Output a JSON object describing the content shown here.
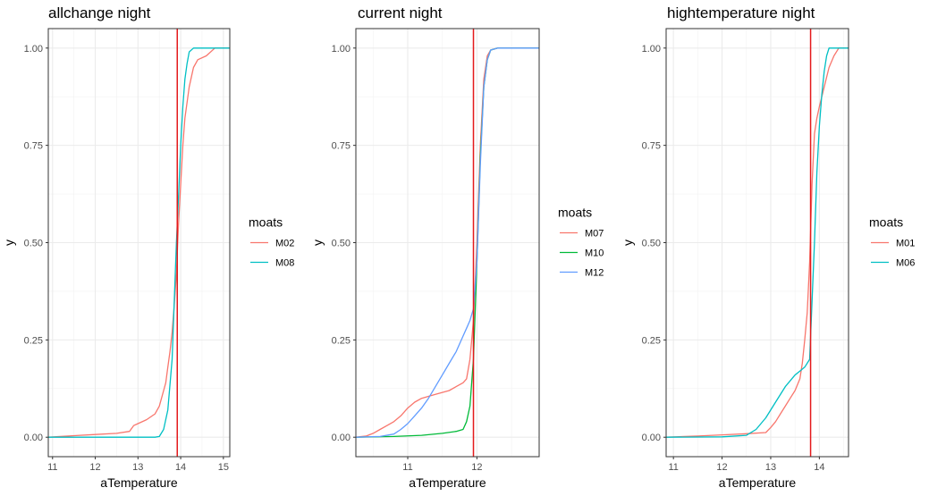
{
  "chart_data": [
    {
      "type": "line",
      "title": "allchange night",
      "xlabel": "aTemperature",
      "ylabel": "y",
      "xlim": [
        10.9,
        15.15
      ],
      "ylim": [
        -0.05,
        1.05
      ],
      "xticks": [
        11,
        12,
        13,
        14,
        15
      ],
      "xtick_labels": [
        "11",
        "12",
        "13",
        "14",
        "15"
      ],
      "yticks": [
        0,
        0.25,
        0.5,
        0.75,
        1.0
      ],
      "ytick_labels": [
        "0.00",
        "0.25",
        "0.50",
        "0.75",
        "1.00"
      ],
      "grid": true,
      "vline": 13.92,
      "vline_color": "#e41a1c",
      "legend_title": "moats",
      "legend_position": "right",
      "series": [
        {
          "name": "M02",
          "color": "#f8766d",
          "x": [
            10.9,
            11.5,
            12.0,
            12.5,
            12.8,
            12.9,
            13.0,
            13.2,
            13.4,
            13.5,
            13.6,
            13.65,
            13.7,
            13.75,
            13.8,
            13.85,
            13.9,
            13.95,
            14.0,
            14.05,
            14.1,
            14.2,
            14.3,
            14.4,
            14.6,
            14.8,
            15.15
          ],
          "y": [
            0,
            0.004,
            0.007,
            0.01,
            0.015,
            0.03,
            0.035,
            0.045,
            0.06,
            0.08,
            0.12,
            0.14,
            0.18,
            0.22,
            0.27,
            0.34,
            0.42,
            0.55,
            0.65,
            0.75,
            0.82,
            0.9,
            0.95,
            0.97,
            0.98,
            1.0,
            1.0
          ]
        },
        {
          "name": "M08",
          "color": "#00bfc4",
          "x": [
            10.9,
            13.0,
            13.4,
            13.5,
            13.6,
            13.7,
            13.8,
            13.85,
            13.9,
            13.95,
            14.0,
            14.05,
            14.1,
            14.15,
            14.2,
            14.3,
            14.4,
            15.15
          ],
          "y": [
            0,
            0,
            0,
            0.002,
            0.02,
            0.07,
            0.2,
            0.35,
            0.5,
            0.62,
            0.75,
            0.85,
            0.92,
            0.96,
            0.99,
            1.0,
            1.0,
            1.0
          ]
        }
      ]
    },
    {
      "type": "line",
      "title": "current night",
      "xlabel": "aTemperature",
      "ylabel": "y",
      "xlim": [
        10.25,
        12.9
      ],
      "ylim": [
        -0.05,
        1.05
      ],
      "xticks": [
        11,
        12
      ],
      "xtick_labels": [
        "11",
        "12"
      ],
      "yticks": [
        0,
        0.25,
        0.5,
        0.75,
        1.0
      ],
      "ytick_labels": [
        "0.00",
        "0.25",
        "0.50",
        "0.75",
        "1.00"
      ],
      "grid": true,
      "vline": 11.95,
      "vline_color": "#e41a1c",
      "legend_title": "moats",
      "legend_position": "right",
      "series": [
        {
          "name": "M07",
          "color": "#f8766d",
          "x": [
            10.25,
            10.4,
            10.5,
            10.6,
            10.7,
            10.8,
            10.9,
            11.0,
            11.1,
            11.2,
            11.3,
            11.4,
            11.5,
            11.6,
            11.7,
            11.8,
            11.85,
            11.9,
            11.95,
            12.0,
            12.05,
            12.1,
            12.15,
            12.2,
            12.3,
            12.5,
            12.9
          ],
          "y": [
            0,
            0.003,
            0.01,
            0.02,
            0.03,
            0.04,
            0.055,
            0.075,
            0.09,
            0.1,
            0.105,
            0.11,
            0.115,
            0.12,
            0.13,
            0.14,
            0.15,
            0.2,
            0.3,
            0.5,
            0.75,
            0.92,
            0.98,
            0.995,
            1.0,
            1.0,
            1.0
          ]
        },
        {
          "name": "M10",
          "color": "#00ba38",
          "x": [
            10.25,
            10.8,
            11.2,
            11.5,
            11.7,
            11.8,
            11.85,
            11.9,
            11.95,
            12.0,
            12.05,
            12.1,
            12.15,
            12.2,
            12.3,
            12.9
          ],
          "y": [
            0,
            0.002,
            0.005,
            0.01,
            0.015,
            0.02,
            0.04,
            0.08,
            0.2,
            0.45,
            0.72,
            0.9,
            0.97,
            0.995,
            1.0,
            1.0
          ]
        },
        {
          "name": "M12",
          "color": "#619cff",
          "x": [
            10.25,
            10.6,
            10.8,
            10.9,
            11.0,
            11.1,
            11.2,
            11.3,
            11.4,
            11.5,
            11.6,
            11.7,
            11.8,
            11.85,
            11.9,
            11.95,
            12.0,
            12.05,
            12.1,
            12.15,
            12.2,
            12.3,
            12.9
          ],
          "y": [
            0,
            0.002,
            0.008,
            0.02,
            0.035,
            0.055,
            0.075,
            0.1,
            0.13,
            0.16,
            0.19,
            0.22,
            0.26,
            0.28,
            0.3,
            0.33,
            0.45,
            0.7,
            0.9,
            0.97,
            0.995,
            1.0,
            1.0
          ]
        }
      ]
    },
    {
      "type": "line",
      "title": "hightemperature night",
      "xlabel": "aTemperature",
      "ylabel": "y",
      "xlim": [
        10.85,
        14.6
      ],
      "ylim": [
        -0.05,
        1.05
      ],
      "xticks": [
        11,
        12,
        13,
        14
      ],
      "xtick_labels": [
        "11",
        "12",
        "13",
        "14"
      ],
      "yticks": [
        0,
        0.25,
        0.5,
        0.75,
        1.0
      ],
      "ytick_labels": [
        "0.00",
        "0.25",
        "0.50",
        "0.75",
        "1.00"
      ],
      "grid": true,
      "vline": 13.82,
      "vline_color": "#e41a1c",
      "legend_title": "moats",
      "legend_position": "right",
      "series": [
        {
          "name": "M01",
          "color": "#f8766d",
          "x": [
            10.85,
            11.5,
            12.0,
            12.5,
            12.9,
            13.0,
            13.1,
            13.2,
            13.3,
            13.4,
            13.5,
            13.6,
            13.65,
            13.7,
            13.75,
            13.8,
            13.85,
            13.9,
            13.95,
            14.0,
            14.1,
            14.2,
            14.3,
            14.4,
            14.6
          ],
          "y": [
            0,
            0.003,
            0.006,
            0.009,
            0.012,
            0.025,
            0.04,
            0.06,
            0.08,
            0.1,
            0.12,
            0.15,
            0.19,
            0.25,
            0.32,
            0.45,
            0.65,
            0.78,
            0.82,
            0.85,
            0.9,
            0.95,
            0.98,
            1.0,
            1.0
          ]
        },
        {
          "name": "M06",
          "color": "#00bfc4",
          "x": [
            10.85,
            12.0,
            12.5,
            12.7,
            12.9,
            13.1,
            13.3,
            13.5,
            13.6,
            13.7,
            13.8,
            13.85,
            13.9,
            13.95,
            14.0,
            14.05,
            14.1,
            14.15,
            14.2,
            14.3,
            14.6
          ],
          "y": [
            0,
            0.001,
            0.005,
            0.02,
            0.05,
            0.09,
            0.13,
            0.16,
            0.17,
            0.18,
            0.2,
            0.35,
            0.5,
            0.68,
            0.8,
            0.88,
            0.94,
            0.98,
            1.0,
            1.0,
            1.0
          ]
        }
      ]
    }
  ]
}
